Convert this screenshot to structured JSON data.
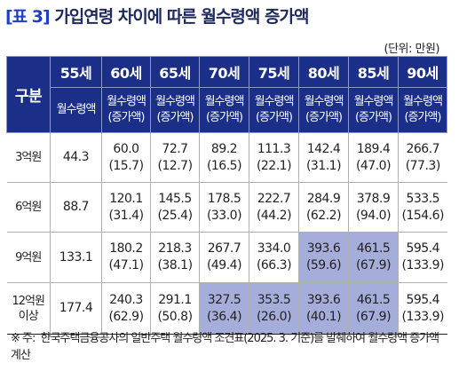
{
  "title": {
    "tag": "[표 3]",
    "text": "가입연령 차이에 따른 월수령액 증가액"
  },
  "unit": "(단위: 만원)",
  "header": {
    "gubun": "구분",
    "ages": [
      "55세",
      "60세",
      "65세",
      "70세",
      "75세",
      "80세",
      "85세",
      "90세"
    ],
    "first_sub": "월수령액",
    "sub_line1": "월수령액",
    "sub_line2": "(증가액)"
  },
  "rows": [
    {
      "label": [
        "3억원"
      ],
      "base": "44.3",
      "cells": [
        [
          "60.0",
          "(15.7)"
        ],
        [
          "72.7",
          "(12.7)"
        ],
        [
          "89.2",
          "(16.5)"
        ],
        [
          "111.3",
          "(22.1)"
        ],
        [
          "142.4",
          "(31.1)"
        ],
        [
          "189.4",
          "(47.0)"
        ],
        [
          "266.7",
          "(77.3)"
        ]
      ],
      "highlight": [
        false,
        false,
        false,
        false,
        false,
        false,
        false
      ]
    },
    {
      "label": [
        "6억원"
      ],
      "base": "88.7",
      "cells": [
        [
          "120.1",
          "(31.4)"
        ],
        [
          "145.5",
          "(25.4)"
        ],
        [
          "178.5",
          "(33.0)"
        ],
        [
          "222.7",
          "(44.2)"
        ],
        [
          "284.9",
          "(62.2)"
        ],
        [
          "378.9",
          "(94.0)"
        ],
        [
          "533.5",
          "(154.6)"
        ]
      ],
      "highlight": [
        false,
        false,
        false,
        false,
        false,
        false,
        false
      ]
    },
    {
      "label": [
        "9억원"
      ],
      "base": "133.1",
      "cells": [
        [
          "180.2",
          "(47.1)"
        ],
        [
          "218.3",
          "(38.1)"
        ],
        [
          "267.7",
          "(49.4)"
        ],
        [
          "334.0",
          "(66.3)"
        ],
        [
          "393.6",
          "(59.6)"
        ],
        [
          "461.5",
          "(67.9)"
        ],
        [
          "595.4",
          "(133.9)"
        ]
      ],
      "highlight": [
        false,
        false,
        false,
        false,
        true,
        true,
        false
      ]
    },
    {
      "label": [
        "12억원",
        "이상"
      ],
      "base": "177.4",
      "cells": [
        [
          "240.3",
          "(62.9)"
        ],
        [
          "291.1",
          "(50.8)"
        ],
        [
          "327.5",
          "(36.4)"
        ],
        [
          "353.5",
          "(26.0)"
        ],
        [
          "393.6",
          "(40.1)"
        ],
        [
          "461.5",
          "(67.9)"
        ],
        [
          "595.4",
          "(133.9)"
        ]
      ],
      "highlight": [
        false,
        false,
        true,
        true,
        true,
        true,
        false
      ]
    }
  ],
  "note": {
    "mark": "※ 주:",
    "text": "한국주택금융공사의 일반주택 월수령액 조견표(2025. 3. 기준)를 발췌하여 월수령액 증가액 계산"
  },
  "colors": {
    "header_bg": "#1b2f88",
    "title": "#1f2a5c",
    "highlight": "#a5addb"
  }
}
